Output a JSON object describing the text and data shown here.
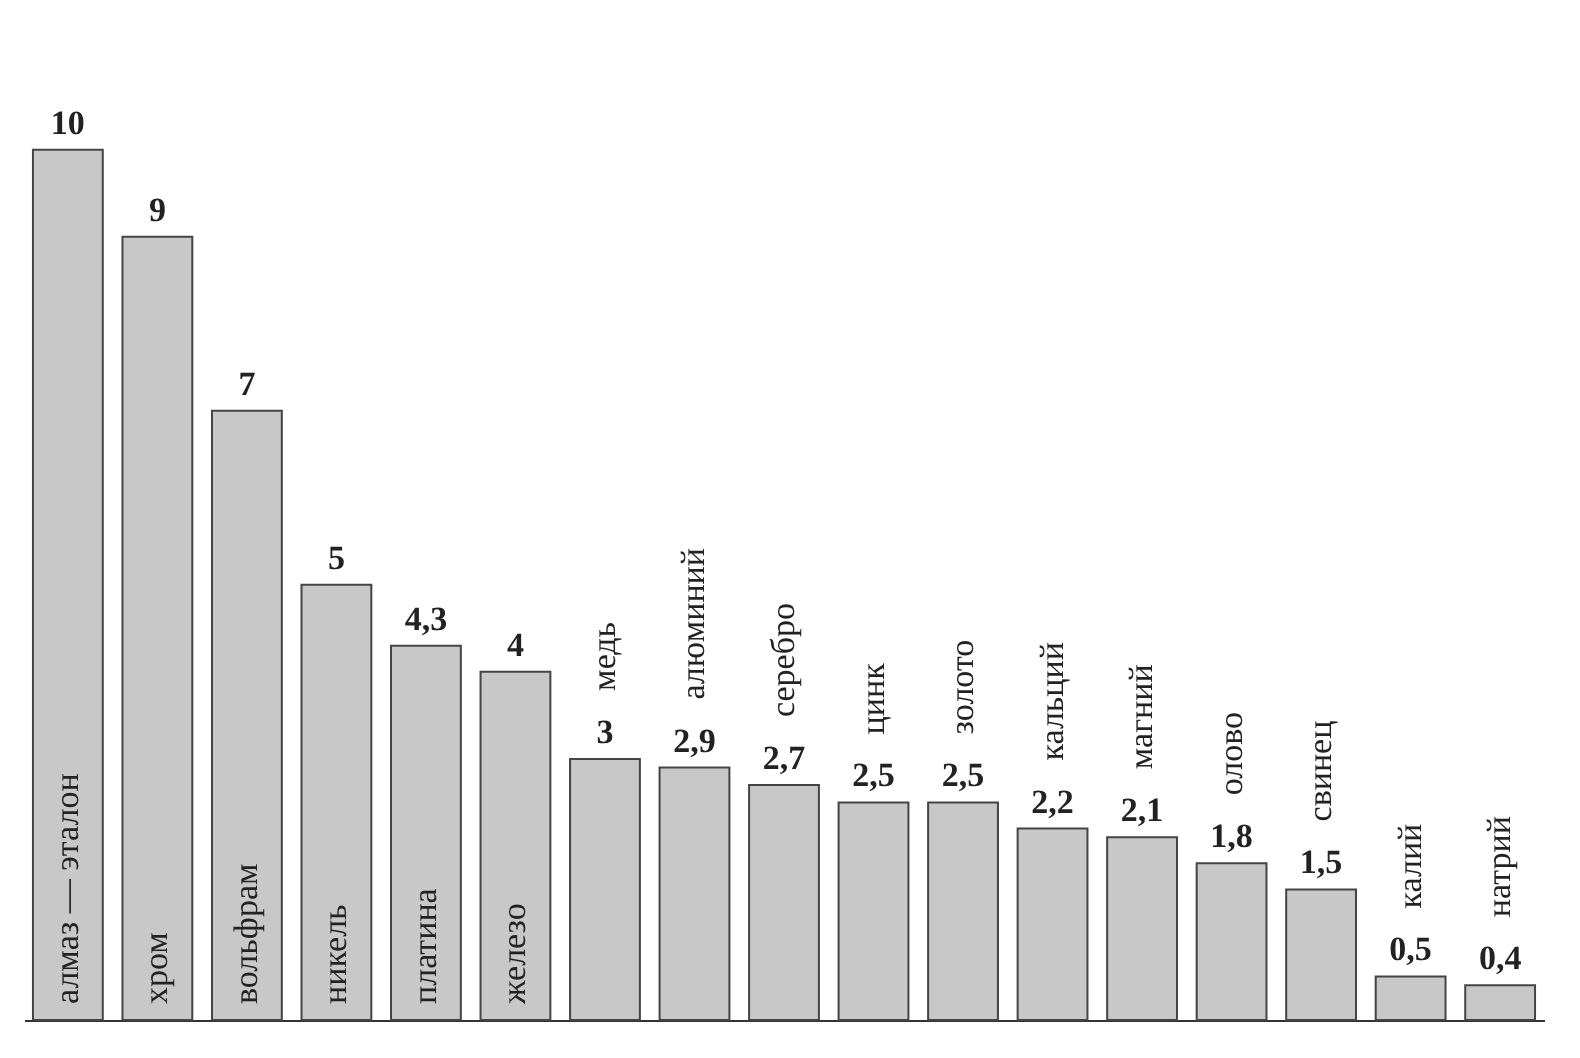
{
  "chart_data": {
    "type": "bar",
    "categories": [
      "алмаз — эталон",
      "хром",
      "вольфрам",
      "никель",
      "платина",
      "железо",
      "медь",
      "алюминий",
      "серебро",
      "цинк",
      "золото",
      "кальций",
      "магний",
      "олово",
      "свинец",
      "калий",
      "натрий"
    ],
    "values": [
      10,
      9,
      7,
      5,
      4.3,
      4,
      3,
      2.9,
      2.7,
      2.5,
      2.5,
      2.2,
      2.1,
      1.8,
      1.5,
      0.5,
      0.4
    ],
    "value_labels": [
      "10",
      "9",
      "7",
      "5",
      "4,3",
      "4",
      "3",
      "2,9",
      "2,7",
      "2,5",
      "2,5",
      "2,2",
      "2,1",
      "1,8",
      "1,5",
      "0,5",
      "0,4"
    ],
    "color": "#c8c8c8"
  }
}
